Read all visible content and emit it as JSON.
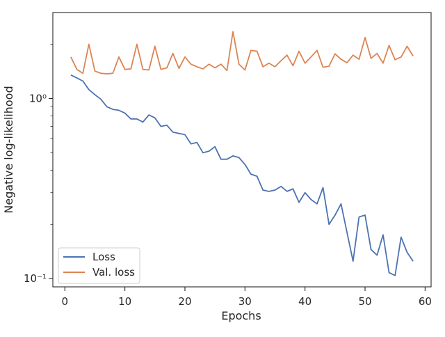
{
  "chart_data": {
    "type": "line",
    "xlabel": "Epochs",
    "ylabel": "Negative log-likelihood",
    "xlim": [
      -2,
      61
    ],
    "ylim": [
      0.09,
      3.0
    ],
    "yscale": "log",
    "x_ticks": [
      {
        "value": 0,
        "label": "0"
      },
      {
        "value": 10,
        "label": "10"
      },
      {
        "value": 20,
        "label": "20"
      },
      {
        "value": 30,
        "label": "30"
      },
      {
        "value": 40,
        "label": "40"
      },
      {
        "value": 50,
        "label": "50"
      },
      {
        "value": 60,
        "label": "60"
      }
    ],
    "y_ticks": [
      {
        "value": 0.1,
        "label": "10⁻¹"
      },
      {
        "value": 1,
        "label": "10⁰"
      }
    ],
    "grid": false,
    "legend_position": "lower-left",
    "x": [
      1,
      2,
      3,
      4,
      5,
      6,
      7,
      8,
      9,
      10,
      11,
      12,
      13,
      14,
      15,
      16,
      17,
      18,
      19,
      20,
      21,
      22,
      23,
      24,
      25,
      26,
      27,
      28,
      29,
      30,
      31,
      32,
      33,
      34,
      35,
      36,
      37,
      38,
      39,
      40,
      41,
      42,
      43,
      44,
      45,
      46,
      47,
      48,
      49,
      50,
      51,
      52,
      53,
      54,
      55,
      56,
      57,
      58
    ],
    "series": [
      {
        "name": "Loss",
        "color": "#4c72b0",
        "values": [
          1.35,
          1.3,
          1.25,
          1.12,
          1.05,
          0.99,
          0.9,
          0.87,
          0.86,
          0.83,
          0.77,
          0.77,
          0.74,
          0.81,
          0.78,
          0.7,
          0.71,
          0.65,
          0.64,
          0.63,
          0.56,
          0.57,
          0.5,
          0.51,
          0.54,
          0.46,
          0.46,
          0.48,
          0.47,
          0.43,
          0.38,
          0.37,
          0.31,
          0.305,
          0.31,
          0.325,
          0.305,
          0.315,
          0.265,
          0.3,
          0.275,
          0.26,
          0.32,
          0.2,
          0.225,
          0.26,
          0.18,
          0.125,
          0.22,
          0.225,
          0.145,
          0.135,
          0.175,
          0.108,
          0.104,
          0.17,
          0.14,
          0.125
        ]
      },
      {
        "name": "Val. loss",
        "color": "#dd8452",
        "values": [
          1.7,
          1.45,
          1.38,
          2.0,
          1.42,
          1.38,
          1.37,
          1.38,
          1.7,
          1.45,
          1.46,
          2.0,
          1.45,
          1.44,
          1.95,
          1.45,
          1.48,
          1.78,
          1.47,
          1.7,
          1.55,
          1.5,
          1.46,
          1.55,
          1.48,
          1.55,
          1.43,
          2.35,
          1.55,
          1.44,
          1.85,
          1.83,
          1.5,
          1.57,
          1.5,
          1.62,
          1.74,
          1.52,
          1.83,
          1.57,
          1.7,
          1.85,
          1.49,
          1.51,
          1.77,
          1.65,
          1.58,
          1.74,
          1.65,
          2.18,
          1.67,
          1.78,
          1.57,
          1.97,
          1.64,
          1.7,
          1.95,
          1.72
        ]
      }
    ]
  }
}
